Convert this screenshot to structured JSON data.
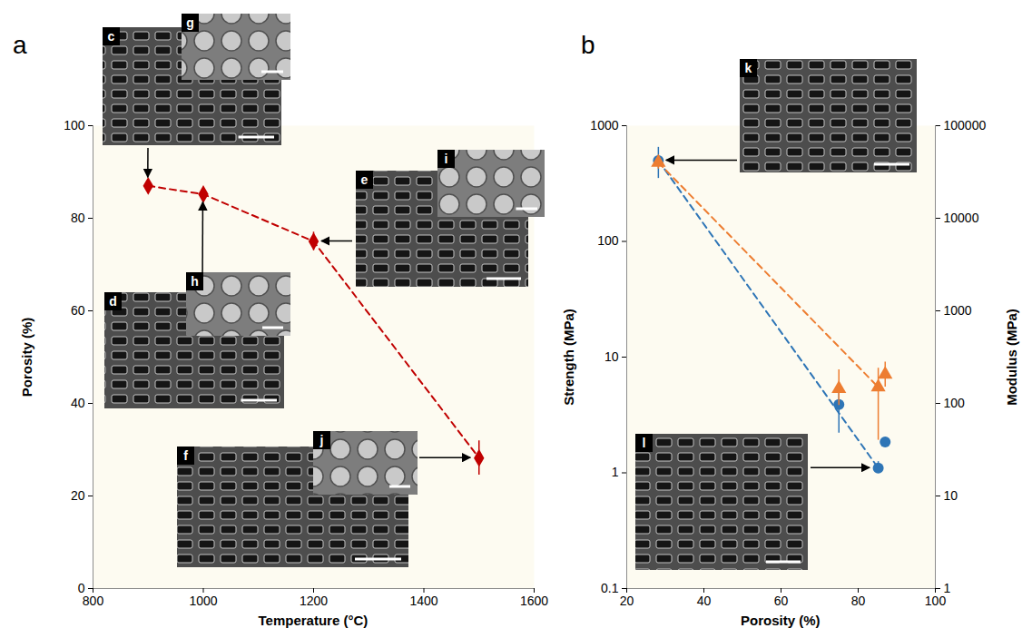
{
  "chart_data": [
    {
      "panel": "a",
      "type": "line",
      "x_label": "Temperature (°C)",
      "y_label": "Porosity (%)",
      "x": [
        900,
        1000,
        1200,
        1500
      ],
      "series": [
        {
          "color": "#c00000",
          "marker": "diamond",
          "line_style": "dashed",
          "values": [
            87,
            85.2,
            75,
            28.2
          ],
          "errors": [
            0.4,
            0.5,
            2.0,
            3.7
          ],
          "image_labels": [
            [
              "c",
              "g"
            ],
            [
              "d",
              "h"
            ],
            [
              "e",
              "i"
            ],
            [
              "f",
              "j"
            ]
          ]
        }
      ],
      "xlim": [
        800,
        1600
      ],
      "xticks": [
        800,
        1000,
        1200,
        1400,
        1600
      ],
      "ylim": [
        0,
        100
      ],
      "yticks": [
        0,
        20,
        40,
        60,
        80,
        100
      ],
      "grid": false
    },
    {
      "panel": "b",
      "type": "scatter",
      "x_label": "Porosity (%)",
      "y_label": "Strength (MPa)",
      "y2_label": "Modulus (MPa)",
      "log": "y",
      "series": [
        {
          "type": "scatter",
          "color": "#2e75b6",
          "marker": "circle",
          "x": [
            28.2,
            75,
            85.2,
            87
          ],
          "values": [
            500,
            3.9,
            1.1,
            1.85
          ],
          "error_bounds": [
            [
              350,
              650
            ],
            [
              2.2,
              5.3
            ],
            [
              1.0,
              1.25
            ],
            [
              1.7,
              2.0
            ]
          ],
          "image_labels": [
            [
              "k"
            ],
            null,
            [
              "l"
            ],
            null
          ]
        },
        {
          "type": "scatter",
          "color": "#ed7d31",
          "marker": "triangle",
          "axis": "y2",
          "x": [
            28.2,
            75,
            85.2,
            87
          ],
          "values": [
            40000,
            144,
            150,
            205
          ],
          "error_bounds": [
            [
              34000,
              47000
            ],
            [
              95,
              230
            ],
            [
              40,
              240
            ],
            [
              150,
              280
            ]
          ]
        },
        {
          "type": "line",
          "color": "#2e75b6",
          "line_style": "dashed",
          "x": [
            28.2,
            85.2
          ],
          "values": [
            500,
            1.1
          ]
        },
        {
          "type": "line",
          "color": "#ed7d31",
          "line_style": "dashed",
          "axis": "y2",
          "x": [
            28.2,
            85.2
          ],
          "values": [
            40000,
            150
          ]
        }
      ],
      "xlim": [
        20,
        100
      ],
      "xticks": [
        20,
        40,
        60,
        80,
        100
      ],
      "ylim": [
        0.1,
        1000
      ],
      "yticks": [
        0.1,
        1,
        10,
        100,
        1000
      ],
      "y2lim": [
        1,
        100000
      ],
      "y2ticks": [
        1,
        10,
        100,
        1000,
        10000,
        100000
      ],
      "grid": false
    }
  ]
}
